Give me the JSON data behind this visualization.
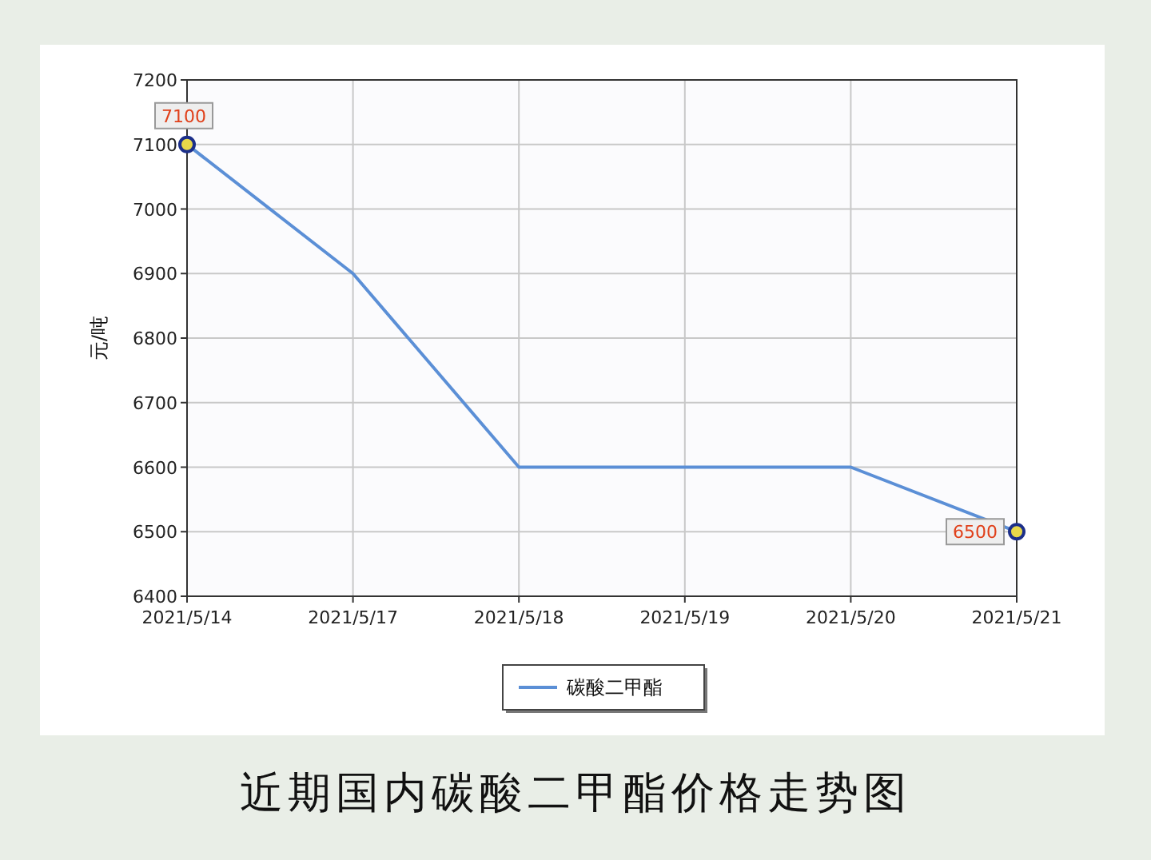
{
  "chart_data": {
    "type": "line",
    "title": "近期国内碳酸二甲酯价格走势图",
    "ylabel": "元/吨",
    "categories": [
      "2021/5/14",
      "2021/5/17",
      "2021/5/18",
      "2021/5/19",
      "2021/5/20",
      "2021/5/21"
    ],
    "series": [
      {
        "name": "碳酸二甲酯",
        "color": "#5b8fd6",
        "values": [
          7100,
          6900,
          6600,
          6600,
          6600,
          6500
        ],
        "value_labels": [
          "7100",
          null,
          null,
          null,
          null,
          "6500"
        ]
      }
    ],
    "ylim": [
      6400,
      7200
    ],
    "yticks": [
      6400,
      6500,
      6600,
      6700,
      6800,
      6900,
      7000,
      7100,
      7200
    ],
    "grid": true,
    "legend": "bottom"
  }
}
